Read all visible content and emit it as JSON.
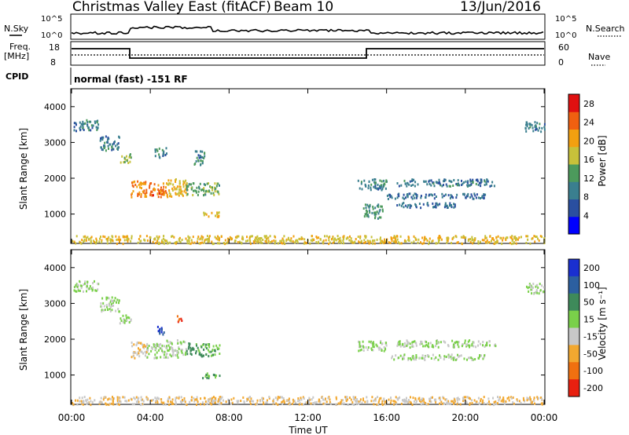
{
  "header": {
    "title": "Christmas Valley East (fitACF)",
    "beam": "Beam 10",
    "date": "13/Jun/2016"
  },
  "summary": {
    "nsky_label": "N.Sky",
    "nsearch_label": "N.Search",
    "nsky_ticks": [
      "10^5",
      "10^0"
    ],
    "nsearch_ticks": [
      "10^5",
      "10^0"
    ],
    "freq_label": "Freq.",
    "freq_unit": "[MHz]",
    "freq_ticks": [
      "18",
      "8"
    ],
    "nave_label": "Nave",
    "nave_ticks": [
      "60",
      "0"
    ],
    "cpid_label": "CPID",
    "cpid_text": "normal (fast) -151 RF"
  },
  "colors": {
    "power_scale": [
      "#0000ff",
      "#2a4fa0",
      "#3a7f8f",
      "#4c9a5c",
      "#c7c13a",
      "#f2a010",
      "#f06010",
      "#e01010"
    ],
    "velocity_scale": [
      "#1a2fd0",
      "#2c5fa0",
      "#3e8a5a",
      "#7ad04a",
      "#c8c8c8",
      "#f2a830",
      "#f07010",
      "#e82010"
    ]
  },
  "chart_data": [
    {
      "type": "heatmap",
      "name": "power",
      "ylabel": "Slant Range [km]",
      "yticks": [
        1000,
        2000,
        3000,
        4000
      ],
      "ylim": [
        180,
        4500
      ],
      "xlim_hours": [
        0,
        24
      ],
      "colorbar_label": "Power [dB]",
      "colorbar_ticks": [
        4,
        8,
        12,
        16,
        20,
        24,
        28
      ],
      "colorbar_range": [
        0,
        30
      ],
      "features": [
        {
          "x": [
            0.1,
            1.4
          ],
          "y": [
            3350,
            3650
          ],
          "value": 9
        },
        {
          "x": [
            1.4,
            2.4
          ],
          "y": [
            2800,
            3200
          ],
          "value": 9
        },
        {
          "x": [
            2.4,
            3.0
          ],
          "y": [
            2450,
            2700
          ],
          "value": 14
        },
        {
          "x": [
            3.0,
            3.8
          ],
          "y": [
            1500,
            1950
          ],
          "value": 22
        },
        {
          "x": [
            3.8,
            4.8
          ],
          "y": [
            1500,
            1900
          ],
          "value": 24
        },
        {
          "x": [
            4.8,
            5.8
          ],
          "y": [
            1500,
            2000
          ],
          "value": 19
        },
        {
          "x": [
            5.8,
            7.5
          ],
          "y": [
            1550,
            1900
          ],
          "value": 14
        },
        {
          "x": [
            6.6,
            7.5
          ],
          "y": [
            930,
            1080
          ],
          "value": 19
        },
        {
          "x": [
            4.2,
            4.8
          ],
          "y": [
            2600,
            2900
          ],
          "value": 10
        },
        {
          "x": [
            6.2,
            6.8
          ],
          "y": [
            2400,
            2800
          ],
          "value": 10
        },
        {
          "x": [
            14.5,
            16.0
          ],
          "y": [
            1700,
            2000
          ],
          "value": 10
        },
        {
          "x": [
            16.0,
            21.0
          ],
          "y": [
            1450,
            1600
          ],
          "value": 8
        },
        {
          "x": [
            16.5,
            19.5
          ],
          "y": [
            1200,
            1350
          ],
          "value": 8
        },
        {
          "x": [
            16.5,
            21.5
          ],
          "y": [
            1800,
            2000
          ],
          "value": 9
        },
        {
          "x": [
            14.8,
            15.8
          ],
          "y": [
            900,
            1300
          ],
          "value": 12
        },
        {
          "x": [
            23.0,
            24.0
          ],
          "y": [
            3300,
            3600
          ],
          "value": 9
        },
        {
          "x": [
            0.0,
            24.0
          ],
          "y": [
            200,
            420
          ],
          "value": 18
        }
      ]
    },
    {
      "type": "heatmap",
      "name": "velocity",
      "ylabel": "Slant Range [km]",
      "yticks": [
        1000,
        2000,
        3000,
        4000
      ],
      "ylim": [
        180,
        4500
      ],
      "xlim_hours": [
        0,
        24
      ],
      "xticks": [
        "00:00",
        "04:00",
        "08:00",
        "12:00",
        "16:00",
        "20:00",
        "00:00"
      ],
      "xlabel": "Time UT",
      "colorbar_label": "Velocity [m s^-1]",
      "colorbar_ticks": [
        200,
        100,
        50,
        15,
        -15,
        -50,
        -100,
        -200
      ],
      "features": [
        {
          "x": [
            0.1,
            1.4
          ],
          "y": [
            3350,
            3650
          ],
          "value": 0
        },
        {
          "x": [
            1.4,
            2.4
          ],
          "y": [
            2800,
            3200
          ],
          "value": 0
        },
        {
          "x": [
            2.4,
            3.0
          ],
          "y": [
            2450,
            2700
          ],
          "value": 0
        },
        {
          "x": [
            3.0,
            3.8
          ],
          "y": [
            1500,
            1950
          ],
          "value": -30
        },
        {
          "x": [
            3.8,
            4.8
          ],
          "y": [
            1500,
            1900
          ],
          "value": 0
        },
        {
          "x": [
            4.3,
            4.7
          ],
          "y": [
            2100,
            2400
          ],
          "value": 150
        },
        {
          "x": [
            4.8,
            5.8
          ],
          "y": [
            1500,
            2000
          ],
          "value": 0
        },
        {
          "x": [
            5.8,
            6.3
          ],
          "y": [
            1600,
            1950
          ],
          "value": 60
        },
        {
          "x": [
            6.3,
            7.5
          ],
          "y": [
            1550,
            1900
          ],
          "value": 30
        },
        {
          "x": [
            6.6,
            7.5
          ],
          "y": [
            930,
            1080
          ],
          "value": 30
        },
        {
          "x": [
            5.3,
            5.6
          ],
          "y": [
            2500,
            2700
          ],
          "value": -150
        },
        {
          "x": [
            14.5,
            16.0
          ],
          "y": [
            1700,
            2000
          ],
          "value": 0
        },
        {
          "x": [
            16.0,
            21.0
          ],
          "y": [
            1450,
            1600
          ],
          "value": 0
        },
        {
          "x": [
            16.5,
            21.5
          ],
          "y": [
            1800,
            2000
          ],
          "value": 0
        },
        {
          "x": [
            23.0,
            24.0
          ],
          "y": [
            3300,
            3600
          ],
          "value": 0
        },
        {
          "x": [
            0.0,
            24.0
          ],
          "y": [
            200,
            420
          ],
          "value": -30
        }
      ]
    }
  ]
}
